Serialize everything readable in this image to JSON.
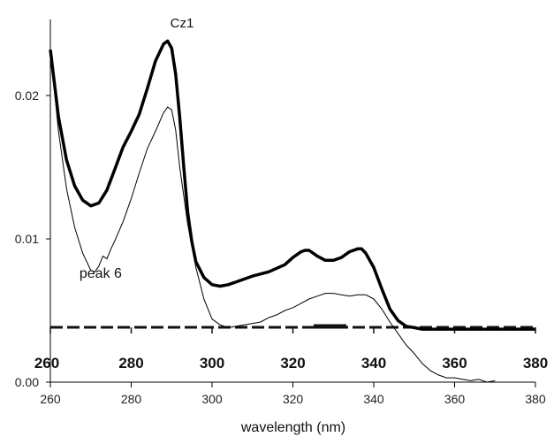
{
  "chart_data": {
    "type": "line",
    "title": "Cz1",
    "xlabel": "wavelength (nm)",
    "ylabel": "",
    "xlim": [
      260,
      380
    ],
    "ylim": [
      0.0,
      0.024
    ],
    "x_ticks": [
      "260",
      "280",
      "300",
      "320",
      "340",
      "360",
      "380"
    ],
    "y_ticks": [
      "0.00",
      "0.01",
      "0.02"
    ],
    "overlay_x_ticks": [
      "260",
      "280",
      "300",
      "320",
      "340",
      "360",
      "380"
    ],
    "annotations": [
      {
        "text": "peak 6",
        "x": 272,
        "y": 0.0076
      }
    ],
    "series": [
      {
        "style": "bold",
        "x": [
          260,
          262,
          264,
          266,
          268,
          270,
          272,
          274,
          276,
          278,
          280,
          282,
          284,
          286,
          288,
          289,
          290,
          291,
          292,
          293,
          294,
          295,
          296,
          298,
          300,
          302,
          304,
          306,
          310,
          314,
          318,
          320,
          322,
          323,
          324,
          326,
          328,
          330,
          332,
          334,
          336,
          337,
          338,
          340,
          342,
          344,
          346,
          348,
          350,
          352,
          355,
          360,
          370,
          380
        ],
        "y": [
          0.0232,
          0.0185,
          0.0155,
          0.0137,
          0.0127,
          0.0123,
          0.0125,
          0.0134,
          0.0149,
          0.0164,
          0.0175,
          0.0187,
          0.0205,
          0.0224,
          0.0236,
          0.0238,
          0.0233,
          0.0215,
          0.0185,
          0.015,
          0.0118,
          0.0098,
          0.0084,
          0.0073,
          0.0068,
          0.0067,
          0.0068,
          0.007,
          0.0074,
          0.0077,
          0.0082,
          0.0087,
          0.0091,
          0.0092,
          0.0092,
          0.0088,
          0.0085,
          0.0085,
          0.0087,
          0.0091,
          0.0093,
          0.0093,
          0.009,
          0.008,
          0.0065,
          0.0051,
          0.0043,
          0.0039,
          0.0038,
          0.0037,
          0.0037,
          0.0037,
          0.0037,
          0.0037
        ]
      },
      {
        "style": "thin",
        "x": [
          260,
          262,
          264,
          266,
          268,
          270,
          271,
          272,
          273,
          274,
          275,
          276,
          278,
          280,
          282,
          284,
          286,
          288,
          289,
          290,
          291,
          292,
          294,
          296,
          298,
          300,
          302,
          304,
          306,
          308,
          310,
          312,
          314,
          316,
          318,
          320,
          322,
          324,
          326,
          328,
          330,
          332,
          334,
          336,
          338,
          340,
          342,
          344,
          346,
          348,
          350,
          352,
          354,
          356,
          358,
          360,
          362,
          364,
          366,
          368,
          370
        ],
        "y": [
          0.0232,
          0.0175,
          0.0135,
          0.0108,
          0.009,
          0.0078,
          0.0077,
          0.0081,
          0.0088,
          0.0086,
          0.0093,
          0.0099,
          0.0112,
          0.0128,
          0.0146,
          0.0163,
          0.0175,
          0.0188,
          0.0192,
          0.019,
          0.0176,
          0.015,
          0.011,
          0.008,
          0.0058,
          0.0044,
          0.004,
          0.0038,
          0.0039,
          0.004,
          0.0041,
          0.0042,
          0.0045,
          0.0047,
          0.005,
          0.0052,
          0.0055,
          0.0058,
          0.006,
          0.0062,
          0.0062,
          0.0061,
          0.006,
          0.0061,
          0.0061,
          0.0058,
          0.0051,
          0.0042,
          0.0034,
          0.0026,
          0.002,
          0.0013,
          0.0008,
          0.0005,
          0.0003,
          0.0003,
          0.0002,
          0.0001,
          0.0002,
          0.0,
          0.0001
        ]
      }
    ]
  },
  "colors": {
    "line": "#000000",
    "axis": "#000000",
    "baseline_dash": "#222222"
  }
}
